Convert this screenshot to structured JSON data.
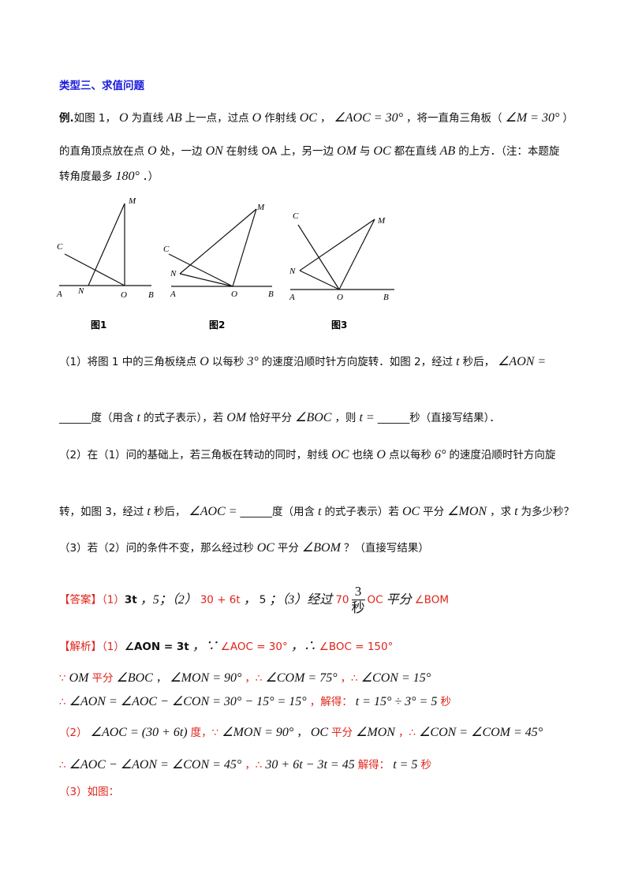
{
  "section_title": "类型三、求值问题",
  "problem": {
    "label": "例.",
    "lines": [
      [
        "如图 1，",
        "O",
        "为直线",
        "AB",
        "上一点，过点",
        "O",
        "作射线",
        "OC",
        "，",
        "∠AOC = 30°",
        "，将一直角三角板（",
        "∠M = 30°",
        "）"
      ],
      [
        "的直角顶点放在点",
        "O",
        "处，一边",
        "ON",
        "在射线 OA 上，另一边",
        "OM",
        "与",
        "OC",
        "都在直线",
        "AB",
        "的上方．（注：本题旋"
      ],
      [
        "转角度最多",
        "180°",
        "．）"
      ]
    ]
  },
  "figures": [
    {
      "caption": "图1",
      "labels": [
        "M",
        "C",
        "A",
        "N",
        "O",
        "B"
      ]
    },
    {
      "caption": "图2",
      "labels": [
        "M",
        "C",
        "N",
        "A",
        "O",
        "B"
      ]
    },
    {
      "caption": "图3",
      "labels": [
        "C",
        "M",
        "N",
        "A",
        "O",
        "B"
      ]
    }
  ],
  "questions": [
    [
      "（1）将图 1 中的三角板绕点",
      "O",
      "以每秒",
      "3°",
      "的速度沿顺时针方向旋转．如图 2，经过",
      "t",
      "秒后，",
      "∠AON ="
    ],
    [
      "______",
      "度（用含",
      "t",
      "的式子表示），若",
      "OM",
      "恰好平分",
      "∠BOC",
      "，则",
      "t =",
      "______",
      "秒（直接写结果）．"
    ],
    [
      "（2）在（1）问的基础上，若三角板在转动的同时，射线",
      "OC",
      "也绕",
      "O",
      "点以每秒",
      "6°",
      "的速度沿顺时针方向旋"
    ],
    [
      "转，如图 3，经过",
      "t",
      "秒后，",
      "∠AOC =",
      "______",
      "度（用含",
      "t",
      "的式子表示）若",
      "OC",
      "平分",
      "∠MON",
      "，求",
      "t",
      "为多少秒？"
    ],
    [
      "（3）若（2）问的条件不变，那么经过秒",
      "OC",
      "平分",
      "∠BOM",
      "？（直接写结果）"
    ]
  ],
  "answer": [
    "【答案】（1）",
    "3t",
    "，5；（2）",
    "30 + 6t",
    "，",
    "5",
    "；（3）经过",
    "70",
    "3",
    "秒",
    "OC",
    "平分",
    "∠BOM"
  ],
  "analysis": [
    [
      "【解析】（1）",
      "∠AON = 3t",
      "，∵",
      "∠AOC = 30°",
      "，∴",
      "∠BOC = 150°"
    ],
    [
      "∵",
      "OM",
      "平分",
      "∠BOC",
      "，",
      "∠MON = 90°",
      "，∴",
      "∠COM = 75°",
      "，∴",
      "∠CON = 15°"
    ],
    [
      "∴",
      "∠AON = ∠AOC − ∠CON = 30° − 15° = 15°",
      "，解得：",
      "t = 15° ÷ 3° = 5",
      "秒"
    ],
    [
      "（2）",
      "∠AOC = (30 + 6t)",
      "度，∵",
      "∠MON = 90°",
      "，",
      "OC",
      "平分",
      "∠MON",
      "，∴",
      "∠CON = ∠COM = 45°"
    ],
    [
      "∴",
      "∠AOC − ∠AON = ∠CON = 45°",
      "，∴",
      "30 + 6t − 3t = 45",
      "解得：",
      "t = 5",
      "秒"
    ],
    [
      "（3）如图："
    ]
  ]
}
